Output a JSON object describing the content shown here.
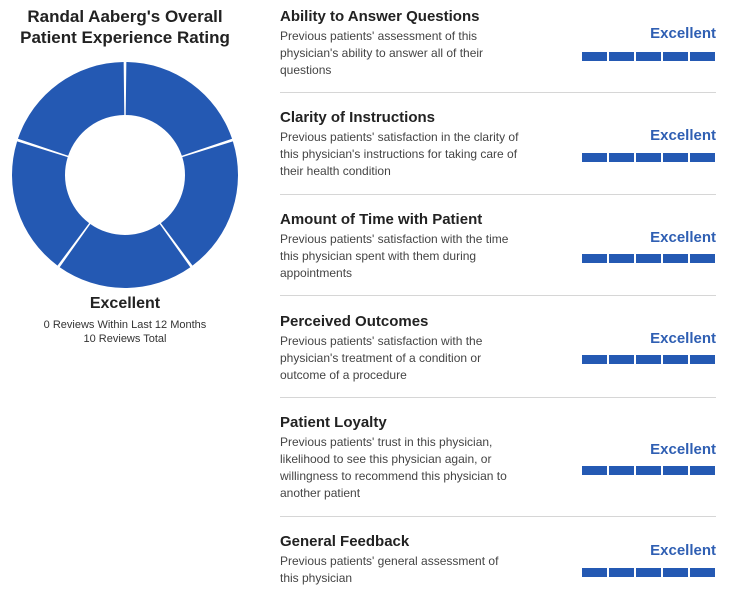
{
  "overall": {
    "title_line1": "Randal Aaberg's Overall",
    "title_line2": "Patient Experience Rating",
    "rating": "Excellent",
    "reviews_recent": "0 Reviews Within Last 12 Months",
    "reviews_total": "10 Reviews Total",
    "donut_segments": 5,
    "donut_filled": 5,
    "accent_color": "#2459b3"
  },
  "metrics": [
    {
      "title": "Ability to Answer Questions",
      "desc": "Previous patients' assessment of this physician's ability to answer all of their questions",
      "rating": "Excellent",
      "filled": 5,
      "total": 5
    },
    {
      "title": "Clarity of Instructions",
      "desc": "Previous patients' satisfaction in the clarity of this physician's instructions for taking care of their health condition",
      "rating": "Excellent",
      "filled": 5,
      "total": 5
    },
    {
      "title": "Amount of Time with Patient",
      "desc": "Previous patients' satisfaction with the time this physician spent with them during appointments",
      "rating": "Excellent",
      "filled": 5,
      "total": 5
    },
    {
      "title": "Perceived Outcomes",
      "desc": "Previous patients' satisfaction with the physician's treatment of a condition or outcome of a procedure",
      "rating": "Excellent",
      "filled": 5,
      "total": 5
    },
    {
      "title": "Patient Loyalty",
      "desc": "Previous patients' trust in this physician, likelihood to see this physician again, or willingness to recommend this physician to another patient",
      "rating": "Excellent",
      "filled": 5,
      "total": 5
    },
    {
      "title": "General Feedback",
      "desc": "Previous patients' general assessment of this physician",
      "rating": "Excellent",
      "filled": 5,
      "total": 5
    }
  ]
}
